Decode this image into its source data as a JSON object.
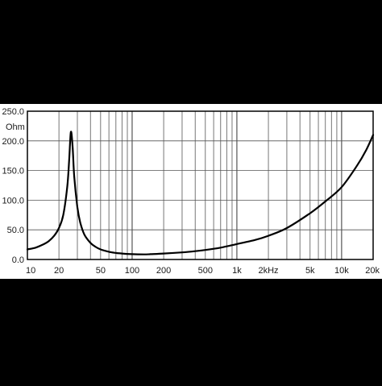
{
  "chart_data": {
    "type": "line",
    "title": "",
    "xlabel": "",
    "ylabel": "Ohm",
    "x_scale": "log",
    "xlim": [
      10,
      20000
    ],
    "ylim": [
      0,
      250
    ],
    "grid": true,
    "y_ticks": [
      {
        "value": 0,
        "label": "0.0"
      },
      {
        "value": 50,
        "label": "50.0"
      },
      {
        "value": 100,
        "label": "100.0"
      },
      {
        "value": 150,
        "label": "150.0"
      },
      {
        "value": 200,
        "label": "200.0"
      },
      {
        "value": 250,
        "label": "250.0"
      }
    ],
    "x_ticks": [
      {
        "value": 10,
        "label": "10"
      },
      {
        "value": 20,
        "label": "20"
      },
      {
        "value": 50,
        "label": "50"
      },
      {
        "value": 100,
        "label": "100"
      },
      {
        "value": 200,
        "label": "200"
      },
      {
        "value": 500,
        "label": "500"
      },
      {
        "value": 1000,
        "label": "1k"
      },
      {
        "value": 2000,
        "label": "2kHz"
      },
      {
        "value": 5000,
        "label": "5k"
      },
      {
        "value": 10000,
        "label": "10k"
      },
      {
        "value": 20000,
        "label": "20k"
      }
    ],
    "series": [
      {
        "color": "#000000",
        "x": [
          10,
          12,
          14,
          16,
          18,
          20,
          22,
          24,
          25,
          26,
          27,
          28,
          30,
          32,
          35,
          40,
          45,
          50,
          60,
          70,
          80,
          100,
          130,
          150,
          200,
          300,
          400,
          500,
          700,
          1000,
          1500,
          2000,
          3000,
          5000,
          7000,
          10000,
          14000,
          17000,
          20000
        ],
        "y": [
          17,
          20,
          25,
          31,
          40,
          53,
          75,
          122,
          165,
          215,
          190,
          140,
          88,
          62,
          42,
          28,
          21,
          17,
          13,
          11,
          10,
          9,
          8.5,
          9,
          10,
          12,
          14,
          16,
          20,
          26,
          33,
          40,
          53,
          78,
          98,
          122,
          158,
          183,
          210
        ]
      }
    ]
  }
}
